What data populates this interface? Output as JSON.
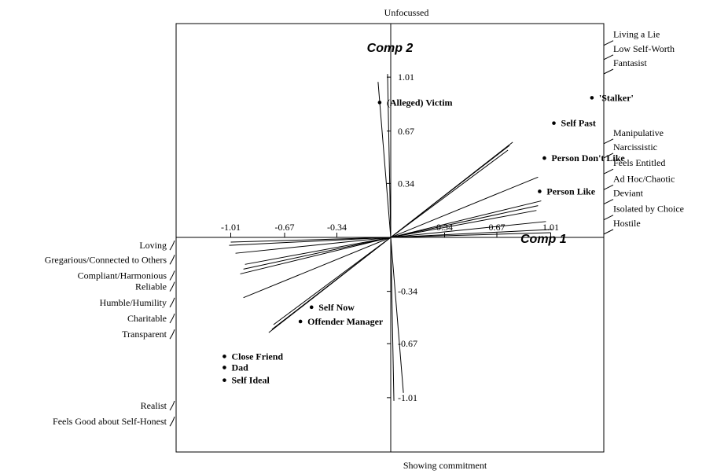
{
  "chart_data": {
    "type": "scatter",
    "subtype": "repertory-grid-biplot",
    "xlabel": "Comp 1",
    "ylabel": "Comp 2",
    "xlim": [
      -1.35,
      1.35
    ],
    "ylim": [
      -1.35,
      1.35
    ],
    "x_ticks": [
      -1.01,
      -0.67,
      -0.34,
      0.34,
      0.67,
      1.01
    ],
    "x_tick_labels": [
      "-1.01",
      "-0.67",
      "-0.34",
      "0.34",
      "0.67",
      "1.01"
    ],
    "y_ticks": [
      1.01,
      0.67,
      0.34,
      -0.34,
      -0.67,
      -1.01
    ],
    "y_tick_labels": [
      "1.01",
      "0.67",
      "0.34",
      "-0.34",
      "-0.67",
      "-1.01"
    ],
    "grid": false,
    "pole_labels": {
      "top": "Unfocussed",
      "bottom": "Showing commitment"
    },
    "elements": [
      {
        "label": "(Alleged) Victim",
        "x": -0.07,
        "y": 0.85
      },
      {
        "label": "'Stalker'",
        "x": 1.27,
        "y": 0.88
      },
      {
        "label": "Self Past",
        "x": 1.03,
        "y": 0.72
      },
      {
        "label": "Person Don't Like",
        "x": 0.97,
        "y": 0.5
      },
      {
        "label": "Person Like",
        "x": 0.94,
        "y": 0.29
      },
      {
        "label": "Self Now",
        "x": -0.5,
        "y": -0.44
      },
      {
        "label": "Offender Manager",
        "x": -0.57,
        "y": -0.53
      },
      {
        "label": "Close Friend",
        "x": -1.05,
        "y": -0.75
      },
      {
        "label": "Dad",
        "x": -1.05,
        "y": -0.82
      },
      {
        "label": "Self Ideal",
        "x": -1.05,
        "y": -0.9
      }
    ],
    "construct_vectors": [
      {
        "x": -0.02,
        "y": 1.03
      },
      {
        "x": 0.08,
        "y": -0.98
      },
      {
        "x": 0.77,
        "y": 0.6
      },
      {
        "x": 0.75,
        "y": 0.58
      },
      {
        "x": 0.74,
        "y": 0.55
      },
      {
        "x": 0.93,
        "y": 0.38
      },
      {
        "x": 0.95,
        "y": 0.23
      },
      {
        "x": 0.93,
        "y": 0.2
      },
      {
        "x": 0.92,
        "y": 0.17
      },
      {
        "x": 0.98,
        "y": 0.1
      },
      {
        "x": 1.02,
        "y": 0.05
      },
      {
        "x": 1.01,
        "y": 0.03
      }
    ],
    "right_construct_labels": [
      {
        "label": "Living a Lie",
        "y": 1.26
      },
      {
        "label": "Low Self-Worth",
        "y": 1.17
      },
      {
        "label": "Fantasist",
        "y": 1.08
      },
      {
        "label": "Manipulative",
        "y": 0.64
      },
      {
        "label": "Narcissistic",
        "y": 0.55
      },
      {
        "label": "Feels Entitled",
        "y": 0.45
      },
      {
        "label": "Ad Hoc/Chaotic",
        "y": 0.35
      },
      {
        "label": "Deviant",
        "y": 0.26
      },
      {
        "label": "Isolated by Choice",
        "y": 0.16
      },
      {
        "label": "Hostile",
        "y": 0.07
      }
    ],
    "left_construct_labels": [
      {
        "label": "Loving",
        "y": -0.07
      },
      {
        "label": "Gregarious/Connected to Others",
        "y": -0.16
      },
      {
        "label": "Compliant/Harmonious",
        "y": -0.26
      },
      {
        "label": "Reliable",
        "y": -0.33
      },
      {
        "label": "Humble/Humility",
        "y": -0.43
      },
      {
        "label": "Charitable",
        "y": -0.53
      },
      {
        "label": "Transparent",
        "y": -0.63
      },
      {
        "label": "Realist",
        "y": -1.08
      },
      {
        "label": "Feels Good about  Self-Honest",
        "y": -1.18
      }
    ]
  }
}
